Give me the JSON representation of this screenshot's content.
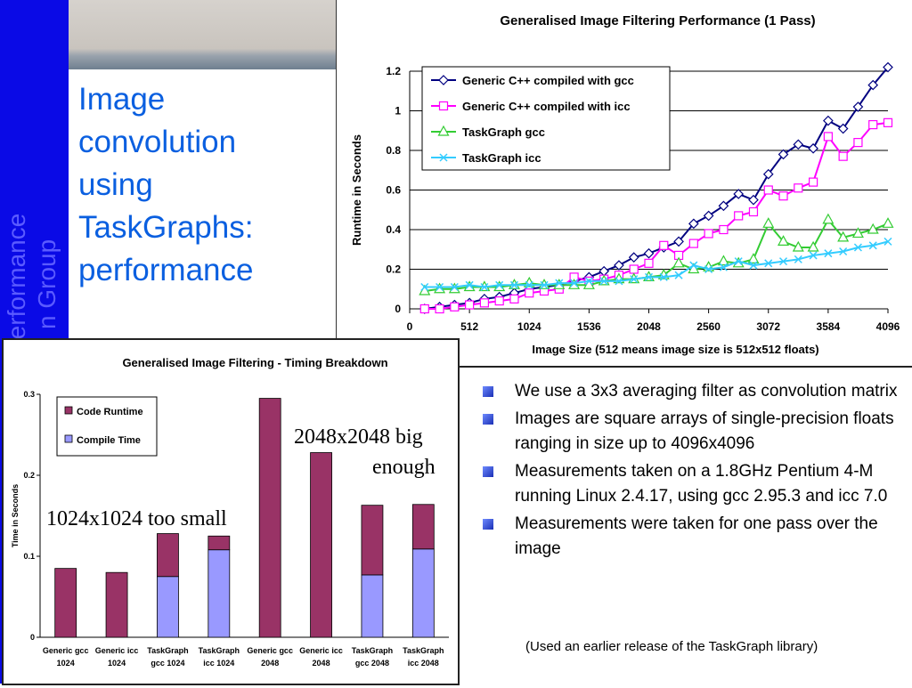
{
  "sidebar": {
    "text_line1": "Performance",
    "text_line2": "n Group"
  },
  "title": {
    "line1": "Image",
    "line2": "convolution",
    "line3": "using",
    "line4": "TaskGraphs:",
    "line5": "performance"
  },
  "notes": {
    "big_enough_line1": "2048x2048 big",
    "big_enough_line2": "enough",
    "too_small": "1024x1024 too small"
  },
  "bullets": [
    "We use a 3x3 averaging filter as convolution matrix",
    "Images are square arrays of single-precision floats ranging in size up to 4096x4096",
    "Measurements taken on a 1.8GHz Pentium 4-M running Linux 2.4.17, using gcc 2.95.3 and icc 7.0",
    "Measurements were taken for one pass over the image"
  ],
  "sub_note": "(Used an earlier release of the TaskGraph library)",
  "colors": {
    "series1": "#000080",
    "series2": "#ff00ff",
    "series3": "#33cc33",
    "series4": "#33ccff",
    "runtime": "#993366",
    "compile": "#9999ff"
  },
  "chart_data": [
    {
      "type": "line",
      "title": "Generalised Image Filtering Performance (1 Pass)",
      "xlabel": "Image Size (512 means image size is 512x512 floats)",
      "ylabel": "Runtime in Seconds",
      "xlim": [
        0,
        4096
      ],
      "ylim": [
        0,
        1.2
      ],
      "xticks": [
        0,
        512,
        1024,
        1536,
        2048,
        2560,
        3072,
        3584,
        4096
      ],
      "yticks": [
        0,
        0.2,
        0.4,
        0.6,
        0.8,
        1,
        1.2
      ],
      "grid": true,
      "legend": "top-left",
      "x": [
        128,
        256,
        384,
        512,
        640,
        768,
        896,
        1024,
        1152,
        1280,
        1408,
        1536,
        1664,
        1792,
        1920,
        2048,
        2176,
        2304,
        2432,
        2560,
        2688,
        2816,
        2944,
        3072,
        3200,
        3328,
        3456,
        3584,
        3712,
        3840,
        3968,
        4096
      ],
      "series": [
        {
          "name": "Generic C++ compiled with gcc",
          "marker": "diamond",
          "values": [
            0.0,
            0.01,
            0.02,
            0.03,
            0.05,
            0.06,
            0.08,
            0.1,
            0.11,
            0.12,
            0.14,
            0.16,
            0.19,
            0.22,
            0.26,
            0.28,
            0.31,
            0.34,
            0.43,
            0.47,
            0.52,
            0.58,
            0.55,
            0.68,
            0.78,
            0.83,
            0.81,
            0.95,
            0.91,
            1.02,
            1.13,
            1.22
          ]
        },
        {
          "name": "Generic C++ compiled with icc",
          "marker": "square",
          "values": [
            0.0,
            0.0,
            0.01,
            0.02,
            0.03,
            0.04,
            0.05,
            0.08,
            0.09,
            0.1,
            0.16,
            0.14,
            0.15,
            0.17,
            0.2,
            0.23,
            0.32,
            0.27,
            0.33,
            0.38,
            0.4,
            0.47,
            0.49,
            0.6,
            0.57,
            0.61,
            0.64,
            0.87,
            0.77,
            0.84,
            0.93,
            0.94
          ]
        },
        {
          "name": "TaskGraph gcc",
          "marker": "triangle",
          "values": [
            0.09,
            0.1,
            0.1,
            0.11,
            0.11,
            0.11,
            0.12,
            0.13,
            0.12,
            0.12,
            0.12,
            0.12,
            0.14,
            0.15,
            0.15,
            0.16,
            0.17,
            0.23,
            0.2,
            0.21,
            0.24,
            0.23,
            0.25,
            0.43,
            0.34,
            0.31,
            0.31,
            0.45,
            0.36,
            0.38,
            0.4,
            0.43
          ]
        },
        {
          "name": "TaskGraph icc",
          "marker": "x",
          "values": [
            0.11,
            0.11,
            0.11,
            0.12,
            0.11,
            0.12,
            0.12,
            0.12,
            0.12,
            0.13,
            0.13,
            0.14,
            0.14,
            0.14,
            0.15,
            0.16,
            0.16,
            0.17,
            0.22,
            0.2,
            0.21,
            0.24,
            0.22,
            0.23,
            0.24,
            0.25,
            0.27,
            0.28,
            0.29,
            0.31,
            0.32,
            0.34
          ]
        }
      ]
    },
    {
      "type": "bar",
      "stacked": true,
      "title": "Generalised Image Filtering - Timing Breakdown",
      "ylabel": "Time in Seconds",
      "xlabel": "",
      "ylim": [
        0,
        0.3
      ],
      "yticks": [
        0,
        0.1,
        0.2,
        0.3
      ],
      "legend": "top-left",
      "categories": [
        [
          "Generic gcc",
          "1024"
        ],
        [
          "Generic icc",
          "1024"
        ],
        [
          "TaskGraph",
          "gcc 1024"
        ],
        [
          "TaskGraph",
          "icc 1024"
        ],
        [
          "Generic gcc",
          "2048"
        ],
        [
          "Generic icc",
          "2048"
        ],
        [
          "TaskGraph",
          "gcc 2048"
        ],
        [
          "TaskGraph",
          "icc 2048"
        ]
      ],
      "series": [
        {
          "name": "Compile Time",
          "values": [
            0,
            0,
            0.075,
            0.108,
            0,
            0,
            0.077,
            0.109
          ]
        },
        {
          "name": "Code Runtime",
          "values": [
            0.085,
            0.08,
            0.053,
            0.017,
            0.295,
            0.228,
            0.086,
            0.055
          ]
        }
      ]
    }
  ]
}
